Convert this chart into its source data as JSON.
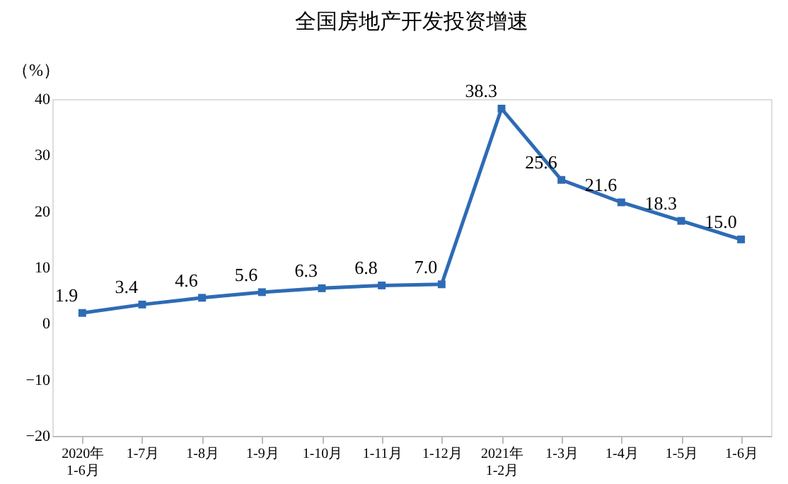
{
  "chart_data": {
    "type": "line",
    "title": "全国房地产开发投资增速",
    "ylabel": "（%）",
    "categories": [
      "2020年\n1-6月",
      "1-7月",
      "1-8月",
      "1-9月",
      "1-10月",
      "1-11月",
      "1-12月",
      "2021年\n1-2月",
      "1-3月",
      "1-4月",
      "1-5月",
      "1-6月"
    ],
    "series": [
      {
        "color": "#2e6bb5",
        "values": [
          1.9,
          3.4,
          4.6,
          5.6,
          6.3,
          6.8,
          7.0,
          38.3,
          25.6,
          21.6,
          18.3,
          15.0
        ]
      }
    ],
    "value_labels": [
      "1.9",
      "3.4",
      "4.6",
      "5.6",
      "6.3",
      "6.8",
      "7.0",
      "38.3",
      "25.6",
      "21.6",
      "18.3",
      "15.0"
    ],
    "ylim": [
      -20,
      40
    ],
    "yticks": [
      -20,
      -10,
      0,
      10,
      20,
      30,
      40
    ],
    "grid": false,
    "marker": "square",
    "line_style": "solid"
  }
}
